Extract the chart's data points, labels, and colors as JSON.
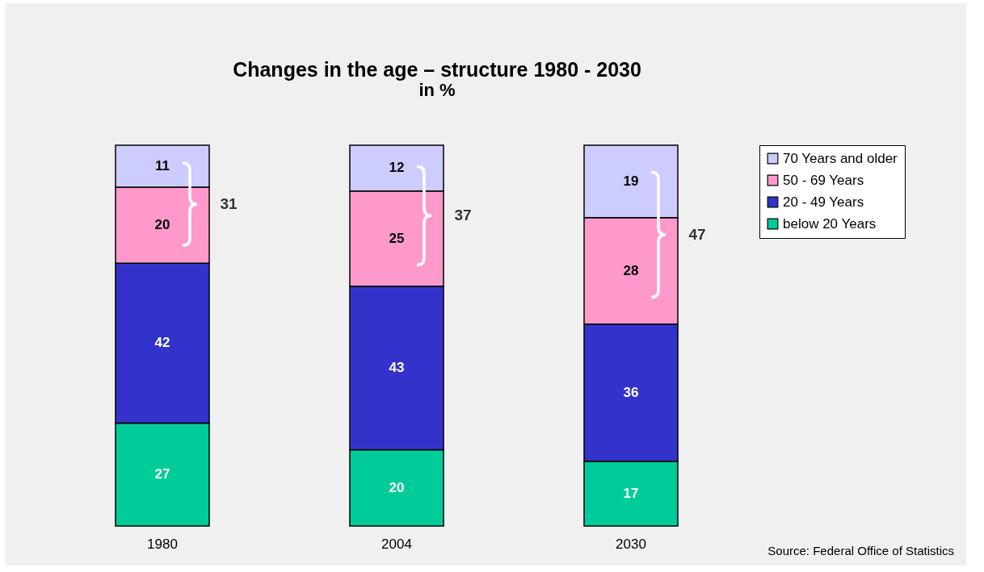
{
  "chart_data": {
    "type": "bar",
    "title": "Changes in the age – structure 1980 - 2030",
    "subtitle": "in %",
    "categories": [
      "1980",
      "2004",
      "2030"
    ],
    "stacked": true,
    "data_labels": true,
    "legend": "right",
    "series": [
      {
        "name": "below 20 Years",
        "color": "#00cc99",
        "values": [
          27,
          20,
          17
        ]
      },
      {
        "name": "20 - 49 Years",
        "color": "#3333cc",
        "values": [
          42,
          43,
          36
        ]
      },
      {
        "name": "50 - 69 Years",
        "color": "#ff99cc",
        "values": [
          20,
          25,
          28
        ]
      },
      {
        "name": "70 Years and older",
        "color": "#ccccff",
        "values": [
          11,
          12,
          19
        ]
      }
    ],
    "annotations": [
      "31",
      "37",
      "47",
      "Source: Federal Office of Statistics"
    ]
  }
}
